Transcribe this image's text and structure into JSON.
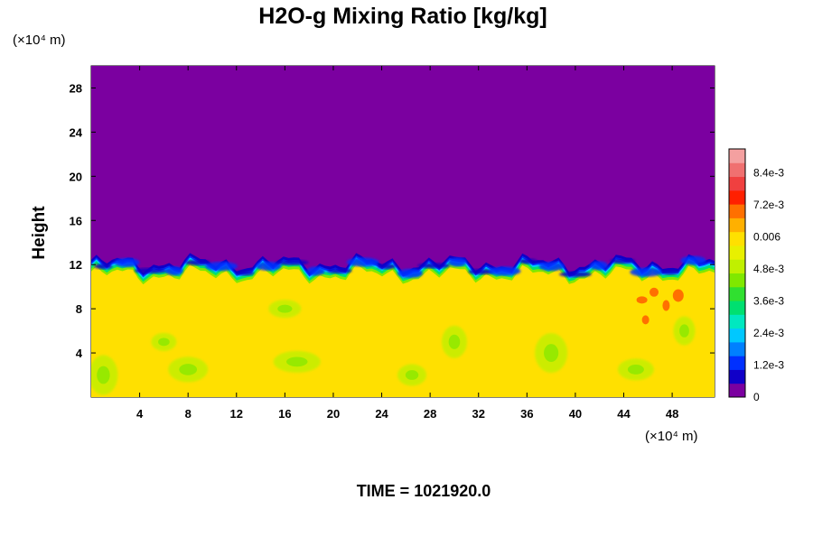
{
  "chart_data": {
    "type": "heatmap",
    "title": "H2O-g Mixing Ratio [kg/kg]",
    "ylabel": "Height",
    "x_unit_label": "(×10⁴ m)",
    "y_unit_label": "(×10⁴ m)",
    "xlim": [
      0,
      51.5
    ],
    "ylim": [
      0,
      30
    ],
    "x_ticks": [
      4,
      8,
      12,
      16,
      20,
      24,
      28,
      32,
      36,
      40,
      44,
      48
    ],
    "y_ticks": [
      4,
      8,
      12,
      16,
      20,
      24,
      28
    ],
    "x_tick_labels": [
      "4",
      "8",
      "12",
      "16",
      "20",
      "24",
      "28",
      "32",
      "36",
      "40",
      "44",
      "48"
    ],
    "y_tick_labels": [
      "4",
      "8",
      "12",
      "16",
      "20",
      "24",
      "28"
    ],
    "colorbar": {
      "range": [
        0,
        0.0093
      ],
      "tick_values": [
        0,
        0.0012,
        0.0024,
        0.0036,
        0.0048,
        0.006,
        0.0072,
        0.0084
      ],
      "tick_labels": [
        "0",
        "1.2e-3",
        "2.4e-3",
        "3.6e-3",
        "4.8e-3",
        "0.006",
        "7.2e-3",
        "8.4e-3"
      ],
      "colors": [
        "#7b00a0",
        "#1000c8",
        "#0030ff",
        "#0080ff",
        "#00c8ff",
        "#00e8c0",
        "#00e070",
        "#30e030",
        "#80e800",
        "#c0f000",
        "#e8f000",
        "#ffe000",
        "#ffb000",
        "#ff7000",
        "#ff2000",
        "#f04040",
        "#f07070",
        "#f4a0a0"
      ]
    },
    "field_levels": {
      "upper_region_value": 0,
      "lower_region_value": 0.0058,
      "interface_height_approx": 11.5
    },
    "footer": "TIME = 1021920.0"
  }
}
